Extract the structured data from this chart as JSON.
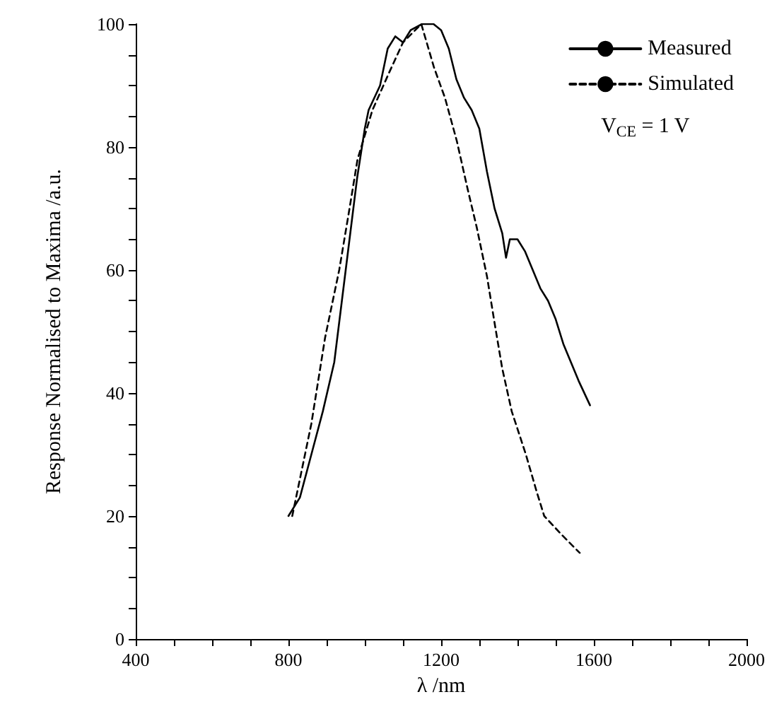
{
  "chart_data": {
    "type": "line",
    "xlabel": "λ /nm",
    "ylabel": "Response Normalised to Maxima /a.u.",
    "xlim": [
      400,
      2000
    ],
    "xticks": [
      400,
      {
        "value": 500,
        "label": null
      },
      {
        "value": 600,
        "label": null
      },
      {
        "value": 700,
        "label": null
      },
      800,
      {
        "value": 900,
        "label": null
      },
      {
        "value": 1000,
        "label": null
      },
      {
        "value": 1100,
        "label": null
      },
      1200,
      {
        "value": 1300,
        "label": null
      },
      {
        "value": 1400,
        "label": null
      },
      {
        "value": 1500,
        "label": null
      },
      1600,
      {
        "value": 1700,
        "label": null
      },
      {
        "value": 1800,
        "label": null
      },
      {
        "value": 1900,
        "label": null
      },
      2000
    ],
    "ylim": [
      0,
      100
    ],
    "yticks": [
      0,
      {
        "value": 5,
        "label": null
      },
      {
        "value": 10,
        "label": null
      },
      {
        "value": 15,
        "label": null
      },
      20,
      {
        "value": 25,
        "label": null
      },
      {
        "value": 30,
        "label": null
      },
      {
        "value": 35,
        "label": null
      },
      40,
      {
        "value": 45,
        "label": null
      },
      {
        "value": 50,
        "label": null
      },
      {
        "value": 55,
        "label": null
      },
      60,
      {
        "value": 65,
        "label": null
      },
      {
        "value": 70,
        "label": null
      },
      {
        "value": 75,
        "label": null
      },
      80,
      {
        "value": 85,
        "label": null
      },
      {
        "value": 90,
        "label": null
      },
      {
        "value": 95,
        "label": null
      },
      100
    ],
    "grid": false,
    "legend": "top right",
    "marker": "none",
    "annotations": [
      "V$_{CE}$ = 1 V"
    ],
    "series": [
      {
        "name": "Measured",
        "color": "#000000",
        "line_style": "solid",
        "x": [
          800,
          830,
          860,
          890,
          920,
          940,
          960,
          980,
          1000,
          1010,
          1040,
          1060,
          1080,
          1100,
          1120,
          1150,
          1180,
          1200,
          1220,
          1240,
          1260,
          1280,
          1300,
          1320,
          1340,
          1360,
          1370,
          1380,
          1400,
          1420,
          1440,
          1460,
          1480,
          1500,
          1520,
          1540,
          1560,
          1590
        ],
        "values": [
          20,
          23,
          30,
          37,
          45,
          55,
          65,
          75,
          83,
          86,
          90,
          96,
          98,
          97,
          99,
          100,
          100,
          99,
          96,
          91,
          88,
          86,
          83,
          76,
          70,
          66,
          62,
          65,
          65,
          63,
          60,
          57,
          55,
          52,
          48,
          45,
          42,
          38
        ]
      },
      {
        "name": "Simulated",
        "color": "#000000",
        "line_style": "dashed",
        "x": [
          810,
          830,
          860,
          896,
          933,
          960,
          981,
          1020,
          1063,
          1100,
          1148,
          1181,
          1210,
          1241,
          1270,
          1293,
          1320,
          1341,
          1360,
          1385,
          1422,
          1450,
          1470,
          1515,
          1563
        ],
        "values": [
          20,
          26,
          35,
          49,
          60,
          70,
          78,
          86,
          92,
          97,
          100,
          93,
          88,
          81,
          73,
          67,
          59,
          51,
          44,
          37,
          30,
          24,
          20,
          17,
          14
        ]
      }
    ]
  }
}
